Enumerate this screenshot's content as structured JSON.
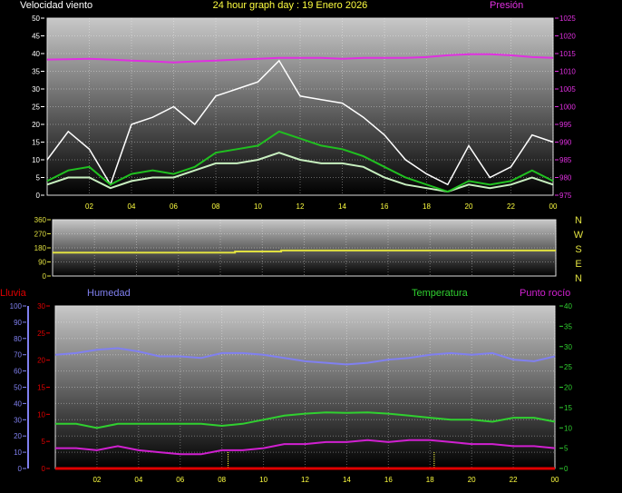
{
  "title": "24 hour graph day : 19 Enero 2026",
  "colors": {
    "title": "#ffff40",
    "wind_gust": "#ffffff",
    "wind_speed": "#c8f0c0",
    "wind_avg": "#20c020",
    "pressure": "#e030e0",
    "direction": "#e0e040",
    "humidity": "#8080f0",
    "rain": "#e00000",
    "temperature": "#30d030",
    "dewpoint": "#d020d0",
    "tick": "#ffff40"
  },
  "chart_data": [
    {
      "type": "line",
      "ylabel": "Velocidad viento",
      "y2label": "Presión",
      "ylim": [
        0,
        50
      ],
      "yticks": [
        "0",
        "5",
        "10",
        "15",
        "20",
        "25",
        "30",
        "35",
        "40",
        "45",
        "50"
      ],
      "y2lim": [
        975,
        1025
      ],
      "y2ticks": [
        "975",
        "980",
        "985",
        "990",
        "995",
        "1000",
        "1005",
        "1010",
        "1015",
        "1020",
        "1025"
      ],
      "xticks": [
        "02",
        "04",
        "06",
        "08",
        "10",
        "12",
        "14",
        "16",
        "18",
        "20",
        "22",
        "00"
      ],
      "grid": true,
      "x_hours": [
        0,
        1,
        2,
        3,
        4,
        5,
        6,
        7,
        8,
        9,
        10,
        11,
        12,
        13,
        14,
        15,
        16,
        17,
        18,
        19,
        20,
        21,
        22,
        23,
        24
      ],
      "series": [
        {
          "key": "gust",
          "values": [
            10,
            18,
            13,
            3,
            20,
            22,
            25,
            20,
            28,
            30,
            32,
            38,
            28,
            27,
            26,
            22,
            17,
            10,
            6,
            3,
            14,
            5,
            8,
            17,
            15
          ]
        },
        {
          "key": "speed",
          "values": [
            3,
            5,
            5,
            2,
            4,
            5,
            5,
            7,
            9,
            9,
            10,
            12,
            10,
            9,
            9,
            8,
            5,
            3,
            2,
            1,
            3,
            2,
            3,
            5,
            3
          ]
        },
        {
          "key": "avg",
          "values": [
            4,
            7,
            8,
            3,
            6,
            7,
            6,
            8,
            12,
            13,
            14,
            18,
            16,
            14,
            13,
            11,
            8,
            5,
            3,
            1,
            4,
            3,
            4,
            7,
            4
          ]
        },
        {
          "key": "pressure",
          "axis": "y2",
          "values": [
            1013.3,
            1013.4,
            1013.5,
            1013.3,
            1013.0,
            1012.8,
            1012.5,
            1012.8,
            1013.0,
            1013.3,
            1013.5,
            1013.8,
            1013.8,
            1013.8,
            1013.5,
            1013.8,
            1013.8,
            1013.8,
            1014.0,
            1014.5,
            1014.8,
            1014.8,
            1014.5,
            1014.0,
            1013.8
          ]
        }
      ]
    },
    {
      "type": "line",
      "ylim": [
        0,
        360
      ],
      "yticks": [
        "0",
        "90",
        "180",
        "270",
        "360"
      ],
      "compass": [
        "N",
        "W",
        "S",
        "E",
        "N"
      ],
      "grid": true,
      "x_hours": [
        0,
        8.7,
        8.7,
        10.9,
        10.9,
        24
      ],
      "series": [
        {
          "key": "direction",
          "values": [
            150,
            150,
            157,
            157,
            163,
            163
          ]
        }
      ]
    },
    {
      "type": "line",
      "labels": {
        "rain": "Lluvia",
        "humidity": "Humedad",
        "temperature": "Temperatura",
        "dewpoint": "Punto rocío"
      },
      "humidity_lim": [
        0,
        100
      ],
      "humidity_ticks": [
        "0",
        "10",
        "20",
        "30",
        "40",
        "50",
        "60",
        "70",
        "80",
        "90",
        "100"
      ],
      "rain_lim": [
        0,
        30
      ],
      "rain_ticks": [
        "0",
        "5",
        "10",
        "15",
        "20",
        "25",
        "30"
      ],
      "temp_lim": [
        0,
        40
      ],
      "temp_ticks": [
        "0",
        "5",
        "10",
        "15",
        "20",
        "25",
        "30",
        "35",
        "40"
      ],
      "xticks": [
        "02",
        "04",
        "06",
        "08",
        "10",
        "12",
        "14",
        "16",
        "18",
        "20",
        "22",
        "00"
      ],
      "grid": true,
      "x_hours": [
        0,
        1,
        2,
        3,
        4,
        5,
        6,
        7,
        8,
        9,
        10,
        11,
        12,
        13,
        14,
        15,
        16,
        17,
        18,
        19,
        20,
        21,
        22,
        23,
        24
      ],
      "series": [
        {
          "key": "humidity",
          "values": [
            70,
            71,
            73,
            74,
            72,
            69,
            69,
            68,
            71,
            71,
            70,
            68,
            66,
            65,
            64,
            65,
            67,
            68,
            70,
            71,
            70,
            71,
            67,
            66,
            69
          ]
        },
        {
          "key": "temperature",
          "values": [
            11,
            11,
            10,
            11,
            11,
            11,
            11,
            11,
            10.5,
            11,
            12,
            13,
            13.5,
            13.8,
            13.7,
            13.8,
            13.5,
            13,
            12.5,
            12,
            12,
            11.5,
            12.5,
            12.5,
            11.5
          ]
        },
        {
          "key": "dewpoint",
          "values": [
            5,
            5,
            4.5,
            5.5,
            4.5,
            4,
            3.5,
            3.5,
            4.5,
            4.5,
            5,
            6,
            6,
            6.5,
            6.5,
            7,
            6.5,
            7,
            7,
            6.5,
            6,
            6,
            5.5,
            5.5,
            5
          ]
        },
        {
          "key": "rain",
          "values": [
            0,
            0,
            0,
            0,
            0,
            0,
            0,
            0,
            0,
            0,
            0,
            0,
            0,
            0,
            0,
            0,
            0,
            0,
            0,
            0,
            0,
            0,
            0,
            0,
            0
          ]
        }
      ],
      "markers_hours": [
        8.3,
        18.2
      ]
    }
  ]
}
